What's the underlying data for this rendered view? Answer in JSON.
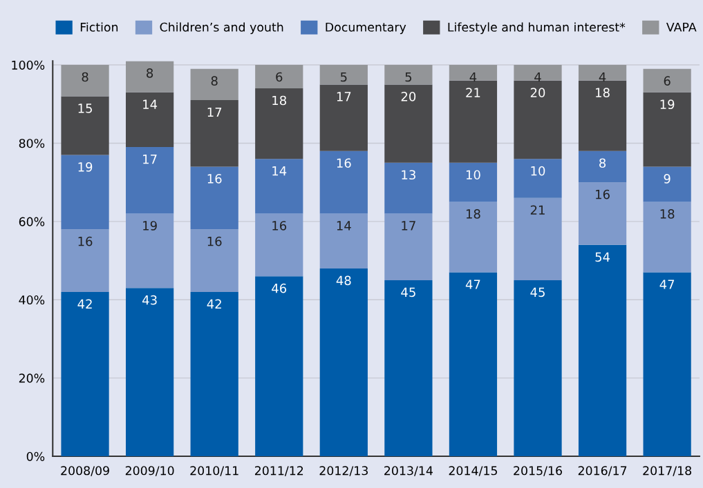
{
  "chart_data": {
    "type": "bar",
    "stacked": true,
    "data_labels": true,
    "grid": "y",
    "legend": "top",
    "categories": [
      "2008/09",
      "2009/10",
      "2010/11",
      "2011/12",
      "2012/13",
      "2013/14",
      "2014/15",
      "2015/16",
      "2016/17",
      "2017/18"
    ],
    "series": [
      {
        "name": "Fiction",
        "color": "#005ca9",
        "values": [
          42,
          43,
          42,
          46,
          48,
          45,
          47,
          45,
          54,
          47
        ]
      },
      {
        "name": "Children’s and youth",
        "color": "#7f9acb",
        "values": [
          16,
          19,
          16,
          16,
          14,
          17,
          18,
          21,
          16,
          18
        ]
      },
      {
        "name": "Documentary",
        "color": "#4a76b9",
        "values": [
          19,
          17,
          16,
          14,
          16,
          13,
          10,
          10,
          8,
          9
        ]
      },
      {
        "name": "Lifestyle and human interest*",
        "color": "#4a4a4c",
        "values": [
          15,
          14,
          17,
          18,
          17,
          20,
          21,
          20,
          18,
          19
        ]
      },
      {
        "name": "VAPA",
        "color": "#939598",
        "values": [
          8,
          8,
          8,
          6,
          5,
          5,
          4,
          4,
          4,
          6
        ]
      }
    ],
    "ylim": [
      0,
      101
    ],
    "yticks": [
      {
        "value": 0,
        "label": "0%"
      },
      {
        "value": 20,
        "label": "20%"
      },
      {
        "value": 40,
        "label": "40%"
      },
      {
        "value": 60,
        "label": "60%"
      },
      {
        "value": 80,
        "label": "80%"
      },
      {
        "value": 100,
        "label": "100%"
      }
    ]
  }
}
